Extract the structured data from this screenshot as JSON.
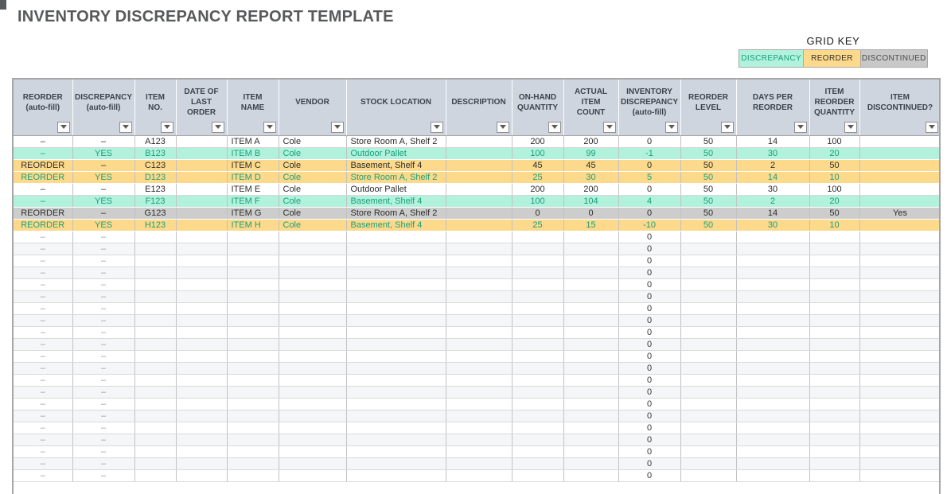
{
  "page": {
    "title": "INVENTORY DISCREPANCY REPORT TEMPLATE"
  },
  "grid_key": {
    "label": "GRID KEY",
    "items": [
      {
        "label": "DISCREPANCY",
        "bg": "#b2f1db",
        "color": "#17a17c"
      },
      {
        "label": "REORDER",
        "bg": "#fcd98b",
        "color": "#2f2f2f"
      },
      {
        "label": "DISCONTINUED",
        "bg": "#c8c8c8",
        "color": "#4a4a4a"
      }
    ]
  },
  "table": {
    "columns": [
      {
        "label": "REORDER\n(auto-fill)"
      },
      {
        "label": "DISCREPANCY\n(auto-fill)"
      },
      {
        "label": "ITEM\nNO."
      },
      {
        "label": "DATE OF\nLAST ORDER"
      },
      {
        "label": "ITEM\nNAME"
      },
      {
        "label": "VENDOR"
      },
      {
        "label": "STOCK LOCATION"
      },
      {
        "label": "DESCRIPTION"
      },
      {
        "label": "ON-HAND\nQUANTITY"
      },
      {
        "label": "ACTUAL ITEM\nCOUNT"
      },
      {
        "label": "INVENTORY\nDISCREPANCY\n(auto-fill)"
      },
      {
        "label": "REORDER\nLEVEL"
      },
      {
        "label": "DAYS PER\nREORDER"
      },
      {
        "label": "ITEM\nREORDER\nQUANTITY"
      },
      {
        "label": "ITEM\nDISCONTINUED?"
      }
    ],
    "filter_icon": "chevron-down-icon",
    "rows": [
      {
        "style": "white",
        "tone": "dark",
        "cells": [
          "–",
          "–",
          "A123",
          "",
          "ITEM A",
          "Cole",
          "Store Room A, Shelf 2",
          "",
          "200",
          "200",
          "0",
          "50",
          "14",
          "100",
          ""
        ]
      },
      {
        "style": "mint",
        "tone": "teal",
        "cells": [
          "–",
          "YES",
          "B123",
          "",
          "ITEM B",
          "Cole",
          "Outdoor Pallet",
          "",
          "100",
          "99",
          "-1",
          "50",
          "30",
          "20",
          ""
        ]
      },
      {
        "style": "orange",
        "tone": "dark",
        "cells": [
          "REORDER",
          "–",
          "C123",
          "",
          "ITEM C",
          "Cole",
          "Basement, Shelf 4",
          "",
          "45",
          "45",
          "0",
          "50",
          "2",
          "50",
          ""
        ]
      },
      {
        "style": "orange",
        "tone": "teal",
        "cells": [
          "REORDER",
          "YES",
          "D123",
          "",
          "ITEM D",
          "Cole",
          "Store Room A, Shelf 2",
          "",
          "25",
          "30",
          "5",
          "50",
          "14",
          "10",
          ""
        ]
      },
      {
        "style": "white",
        "tone": "dark",
        "cells": [
          "–",
          "–",
          "E123",
          "",
          "ITEM E",
          "Cole",
          "Outdoor Pallet",
          "",
          "200",
          "200",
          "0",
          "50",
          "30",
          "100",
          ""
        ]
      },
      {
        "style": "mint",
        "tone": "teal",
        "cells": [
          "–",
          "YES",
          "F123",
          "",
          "ITEM F",
          "Cole",
          "Basement, Shelf 4",
          "",
          "100",
          "104",
          "4",
          "50",
          "2",
          "20",
          ""
        ]
      },
      {
        "style": "gray",
        "tone": "dark",
        "cells": [
          "REORDER",
          "–",
          "G123",
          "",
          "ITEM G",
          "Cole",
          "Store Room A, Shelf 2",
          "",
          "0",
          "0",
          "0",
          "50",
          "14",
          "50",
          "Yes"
        ]
      },
      {
        "style": "orange",
        "tone": "teal",
        "cells": [
          "REORDER",
          "YES",
          "H123",
          "",
          "ITEM H",
          "Cole",
          "Basement, Shelf 4",
          "",
          "25",
          "15",
          "-10",
          "50",
          "30",
          "10",
          ""
        ]
      }
    ],
    "empty_rows": {
      "count": 21,
      "cells": [
        "–",
        "–",
        "",
        "",
        "",
        "",
        "",
        "",
        "",
        "",
        "0",
        "",
        "",
        "",
        ""
      ]
    }
  },
  "colors": {
    "title_text": "#58595b",
    "header_bg": "#ced5df",
    "header_text": "#3e424b",
    "discrepancy_bg": "#b2f1db",
    "discrepancy_text": "#17a17c",
    "reorder_bg": "#fcd98b",
    "discontinued_bg": "#c8c8c8",
    "discontinued_row_bg": "#cdcdcd",
    "empty_stripe_bg": "#f5f6f8",
    "grid_line": "#c2c2c2",
    "outer_border": "#a6a6a6"
  }
}
